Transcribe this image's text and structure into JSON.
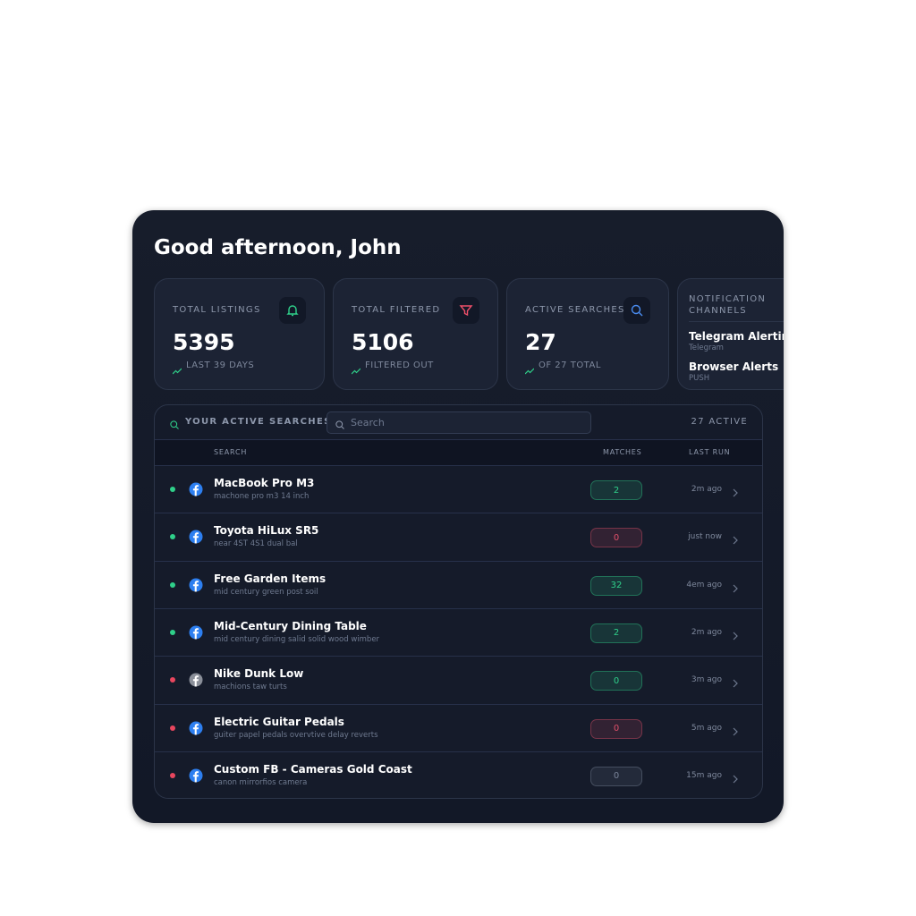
{
  "greeting": "Good afternoon, John",
  "stats": [
    {
      "label": "TOTAL LISTINGS",
      "value": 5395,
      "sub": "LAST 39 DAYS",
      "icon_color": "#2fd08a"
    },
    {
      "label": "TOTAL FILTERED",
      "value": 5106,
      "sub": "FILTERED OUT",
      "icon_color": "#f0506a"
    },
    {
      "label": "ACTIVE SEARCHES",
      "value": 27,
      "sub": "OF 27 TOTAL",
      "icon_color": "#4a8cf0"
    }
  ],
  "notifications": {
    "title": "NOTIFICATION CHANNELS",
    "channels": [
      {
        "name": "Telegram Alerting",
        "type": "Telegram"
      },
      {
        "name": "Browser Alerts",
        "type": "PUSH"
      }
    ]
  },
  "searches": {
    "title": "YOUR ACTIVE SEARCHES",
    "placeholder": "Search",
    "count": "27 ACTIVE",
    "columns": [
      "SEARCH",
      "MATCHES",
      "LAST RUN"
    ],
    "rows": [
      {
        "name": "MacBook Pro M3",
        "query": "machone pro m3 14 inch",
        "matches": 2,
        "last_run": "2m ago",
        "dot_color": "#2fd08a",
        "badge_color": "#2fd08a",
        "icon_color": "#2d7ff0"
      },
      {
        "name": "Toyota HiLux SR5",
        "query": "near 4ST 4S1 dual bal",
        "matches": 0,
        "last_run": "just now",
        "dot_color": "#2fd08a",
        "badge_color": "#e0506a",
        "icon_color": "#2d7ff0"
      },
      {
        "name": "Free Garden Items",
        "query": "mid century green post soil",
        "matches": 32,
        "last_run": "4em ago",
        "dot_color": "#2fd08a",
        "badge_color": "#2fd08a",
        "icon_color": "#2d7ff0"
      },
      {
        "name": "Mid-Century Dining Table",
        "query": "mid century dining salid solid wood wimber",
        "matches": 2,
        "last_run": "2m ago",
        "dot_color": "#2fd08a",
        "badge_color": "#2fd08a",
        "icon_color": "#2d7ff0"
      },
      {
        "name": "Nike Dunk Low",
        "query": "machions taw turts",
        "matches": 0,
        "last_run": "3m ago",
        "dot_color": "#e8465e",
        "badge_color": "#2fd08a",
        "icon_color": "#8a8f99"
      },
      {
        "name": "Electric Guitar Pedals",
        "query": "guiter papel pedals overvtive delay reverts",
        "matches": 0,
        "last_run": "5m ago",
        "dot_color": "#e8465e",
        "badge_color": "#e0506a",
        "icon_color": "#2d7ff0"
      },
      {
        "name": "Custom FB - Cameras Gold Coast",
        "query": "canon mirrorfios camera",
        "matches": 0,
        "last_run": "15m ago",
        "dot_color": "#e8465e",
        "badge_color": "#7a8499",
        "icon_color": "#2d7ff0"
      }
    ]
  }
}
